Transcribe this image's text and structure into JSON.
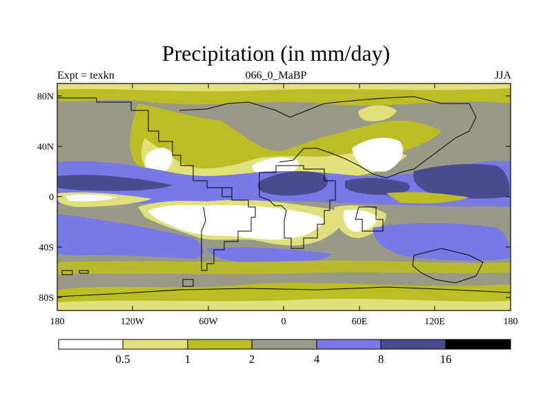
{
  "title": "Precipitation (in mm/day)",
  "subtitle_left": "Expt = texkn",
  "subtitle_center": "066_0_MaBP",
  "subtitle_right": "JJA",
  "axes": {
    "lat_ticks": [
      "80N",
      "40N",
      "0",
      "40S",
      "80S"
    ],
    "lon_ticks": [
      "180",
      "120W",
      "60W",
      "0",
      "60E",
      "120E",
      "180"
    ]
  },
  "colorbar": {
    "labels": [
      "0.5",
      "1",
      "2",
      "4",
      "8",
      "16"
    ],
    "colors": [
      "#ffffff",
      "#e0e07c",
      "#bcbc24",
      "#999988",
      "#7878e6",
      "#4a4a8e",
      "#000000"
    ]
  },
  "palette": {
    "white": "#ffffff",
    "pale_yellow": "#e0e07c",
    "olive": "#bcbc24",
    "gray": "#999988",
    "light_blue": "#7878e6",
    "dark_blue": "#4a4a8e"
  }
}
